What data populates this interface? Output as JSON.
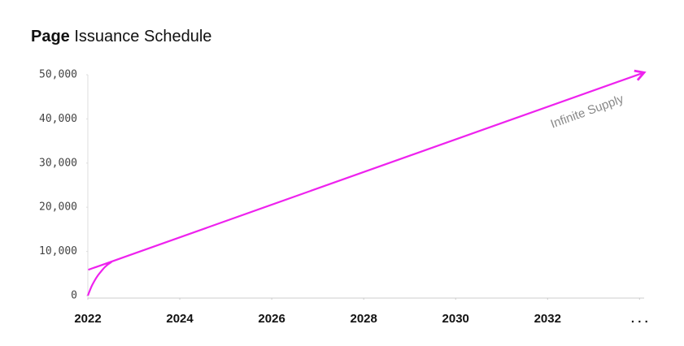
{
  "chart_data": {
    "type": "line",
    "title_prefix": "Page",
    "title": "Issuance Schedule",
    "annotation": "Infinite Supply",
    "x": [
      2022,
      2022.1,
      2022.25,
      2022.5,
      2023,
      2034.1
    ],
    "values": [
      0,
      2500,
      5000,
      7500,
      9500,
      50500
    ],
    "color": "#ee22ee",
    "xlim": [
      2022,
      2034.1
    ],
    "xticks": [
      2022,
      2024,
      2026,
      2028,
      2030,
      2032,
      {
        "value": 2034,
        "label": ". . ."
      }
    ],
    "ylim": [
      0,
      50000
    ],
    "yticks": [
      0,
      {
        "value": 10000,
        "label": "10,000"
      },
      {
        "value": 20000,
        "label": "20,000"
      },
      {
        "value": 30000,
        "label": "30,000"
      },
      {
        "value": 40000,
        "label": "40,000"
      },
      {
        "value": 50000,
        "label": "50,000"
      }
    ],
    "grid": false
  }
}
